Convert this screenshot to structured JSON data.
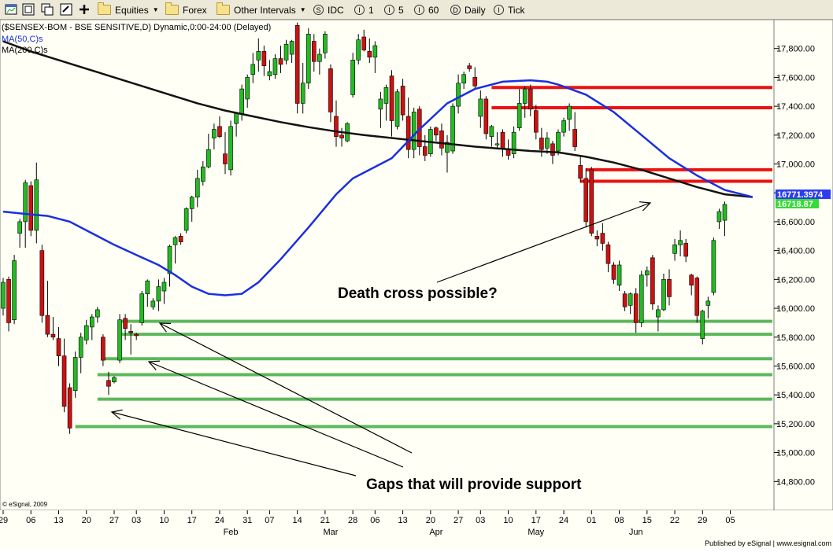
{
  "toolbar": {
    "equities": "Equities",
    "forex": "Forex",
    "other_intervals": "Other Intervals",
    "idc": "IDC",
    "i1": "1",
    "i5": "5",
    "i60": "60",
    "daily": "Daily",
    "tick": "Tick",
    "circle_glyph_idc": "S",
    "circle_glyph_i": "I",
    "circle_glyph_d": "D",
    "circle_glyph_t": "I"
  },
  "chart_data": {
    "type": "candlestick",
    "header": "($SENSEX-BOM - BSE SENSITIVE,D) Dynamic,0:00-24:00 (Delayed)",
    "ma50_label": "MA(50,C)s",
    "ma200_label": "MA(200,C)s",
    "copyright": "© eSignal, 2009",
    "published": "Published by eSignal | www.esignal.com",
    "ylim": [
      14600,
      18000
    ],
    "y_ticks": [
      14800,
      15000,
      15200,
      15400,
      15600,
      15800,
      16000,
      16200,
      16400,
      16600,
      16800,
      17000,
      17200,
      17400,
      17600,
      17800
    ],
    "x_ticks": [
      "29",
      "06",
      "13",
      "20",
      "27",
      "03",
      "10",
      "17",
      "24",
      "31",
      "07",
      "14",
      "21",
      "28",
      "06",
      "13",
      "20",
      "27",
      "03",
      "10",
      "17",
      "24",
      "01",
      "08",
      "15",
      "22",
      "29",
      "05"
    ],
    "months": [
      "Feb",
      "Mar",
      "Apr",
      "May",
      "Jun"
    ],
    "price_labels": {
      "ma50": "16771.3974",
      "close": "16718.87"
    },
    "colors": {
      "up": "#22bb22",
      "down": "#cc1111",
      "ma50": "#1a2fe0",
      "ma200": "#111111",
      "support": "#5cb85c",
      "resistance": "#ee1111",
      "ma50_box": "#2c3cf0",
      "close_box": "#33dd33"
    },
    "candles": [
      {
        "o": 16000,
        "h": 16210,
        "l": 15950,
        "c": 16180
      },
      {
        "o": 16200,
        "h": 16220,
        "l": 15840,
        "c": 15900
      },
      {
        "o": 15920,
        "h": 16370,
        "l": 15890,
        "c": 16330
      },
      {
        "o": 16520,
        "h": 16620,
        "l": 16420,
        "c": 16600
      },
      {
        "o": 16600,
        "h": 16890,
        "l": 16420,
        "c": 16870
      },
      {
        "o": 16850,
        "h": 16880,
        "l": 16500,
        "c": 16540
      },
      {
        "o": 16540,
        "h": 17010,
        "l": 16450,
        "c": 16890
      },
      {
        "o": 16400,
        "h": 16440,
        "l": 15900,
        "c": 15950
      },
      {
        "o": 15950,
        "h": 16190,
        "l": 15800,
        "c": 15820
      },
      {
        "o": 15820,
        "h": 15940,
        "l": 15780,
        "c": 15800
      },
      {
        "o": 15790,
        "h": 15870,
        "l": 15600,
        "c": 15670
      },
      {
        "o": 15670,
        "h": 15790,
        "l": 15280,
        "c": 15320
      },
      {
        "o": 15450,
        "h": 15480,
        "l": 15130,
        "c": 15170
      },
      {
        "o": 15430,
        "h": 15700,
        "l": 15380,
        "c": 15660
      },
      {
        "o": 15660,
        "h": 15830,
        "l": 15550,
        "c": 15800
      },
      {
        "o": 15780,
        "h": 15920,
        "l": 15750,
        "c": 15880
      },
      {
        "o": 15870,
        "h": 15960,
        "l": 15780,
        "c": 15940
      },
      {
        "o": 15940,
        "h": 16010,
        "l": 15900,
        "c": 15990
      },
      {
        "o": 15800,
        "h": 15820,
        "l": 15600,
        "c": 15640
      },
      {
        "o": 15500,
        "h": 15560,
        "l": 15400,
        "c": 15460
      },
      {
        "o": 15490,
        "h": 15530,
        "l": 15480,
        "c": 15520
      },
      {
        "o": 15640,
        "h": 15960,
        "l": 15620,
        "c": 15920
      },
      {
        "o": 15930,
        "h": 15960,
        "l": 15780,
        "c": 15860
      },
      {
        "o": 15840,
        "h": 15890,
        "l": 15680,
        "c": 15830
      },
      {
        "o": 15820,
        "h": 15830,
        "l": 15780,
        "c": 15810
      },
      {
        "o": 15900,
        "h": 16120,
        "l": 15880,
        "c": 16100
      },
      {
        "o": 16100,
        "h": 16200,
        "l": 16010,
        "c": 16190
      },
      {
        "o": 16010,
        "h": 16070,
        "l": 15990,
        "c": 16050
      },
      {
        "o": 16050,
        "h": 16200,
        "l": 15980,
        "c": 16150
      },
      {
        "o": 16120,
        "h": 16210,
        "l": 16030,
        "c": 16180
      },
      {
        "o": 16240,
        "h": 16440,
        "l": 16150,
        "c": 16430
      },
      {
        "o": 16440,
        "h": 16500,
        "l": 16310,
        "c": 16490
      },
      {
        "o": 16500,
        "h": 16520,
        "l": 16440,
        "c": 16460
      },
      {
        "o": 16540,
        "h": 16700,
        "l": 16520,
        "c": 16690
      },
      {
        "o": 16690,
        "h": 16780,
        "l": 16600,
        "c": 16770
      },
      {
        "o": 16770,
        "h": 16960,
        "l": 16700,
        "c": 16900
      },
      {
        "o": 16880,
        "h": 17020,
        "l": 16850,
        "c": 16980
      },
      {
        "o": 16980,
        "h": 17210,
        "l": 16970,
        "c": 17100
      },
      {
        "o": 17180,
        "h": 17280,
        "l": 17100,
        "c": 17240
      },
      {
        "o": 17260,
        "h": 17330,
        "l": 17180,
        "c": 17190
      },
      {
        "o": 17070,
        "h": 17220,
        "l": 16930,
        "c": 17000
      },
      {
        "o": 16960,
        "h": 17300,
        "l": 16920,
        "c": 17260
      },
      {
        "o": 17280,
        "h": 17360,
        "l": 17190,
        "c": 17350
      },
      {
        "o": 17350,
        "h": 17550,
        "l": 17300,
        "c": 17520
      },
      {
        "o": 17450,
        "h": 17620,
        "l": 17390,
        "c": 17600
      },
      {
        "o": 17620,
        "h": 17770,
        "l": 17560,
        "c": 17690
      },
      {
        "o": 17720,
        "h": 17870,
        "l": 17640,
        "c": 17780
      },
      {
        "o": 17780,
        "h": 17820,
        "l": 17610,
        "c": 17680
      },
      {
        "o": 17610,
        "h": 17720,
        "l": 17580,
        "c": 17640
      },
      {
        "o": 17620,
        "h": 17760,
        "l": 17590,
        "c": 17730
      },
      {
        "o": 17730,
        "h": 17820,
        "l": 17630,
        "c": 17690
      },
      {
        "o": 17720,
        "h": 17860,
        "l": 17690,
        "c": 17830
      },
      {
        "o": 17760,
        "h": 17860,
        "l": 17700,
        "c": 17850
      },
      {
        "o": 17960,
        "h": 17980,
        "l": 17350,
        "c": 17420
      },
      {
        "o": 17420,
        "h": 17700,
        "l": 17350,
        "c": 17560
      },
      {
        "o": 17560,
        "h": 17940,
        "l": 17520,
        "c": 17900
      },
      {
        "o": 17850,
        "h": 17900,
        "l": 17640,
        "c": 17710
      },
      {
        "o": 17710,
        "h": 17800,
        "l": 17620,
        "c": 17760
      },
      {
        "o": 17770,
        "h": 17920,
        "l": 17730,
        "c": 17900
      },
      {
        "o": 17660,
        "h": 17690,
        "l": 17290,
        "c": 17360
      },
      {
        "o": 17330,
        "h": 17440,
        "l": 17120,
        "c": 17190
      },
      {
        "o": 17200,
        "h": 17250,
        "l": 17120,
        "c": 17180
      },
      {
        "o": 17160,
        "h": 17290,
        "l": 17150,
        "c": 17280
      },
      {
        "o": 17480,
        "h": 17770,
        "l": 17460,
        "c": 17720
      },
      {
        "o": 17720,
        "h": 17900,
        "l": 17690,
        "c": 17860
      },
      {
        "o": 17880,
        "h": 17930,
        "l": 17780,
        "c": 17790
      },
      {
        "o": 17780,
        "h": 17870,
        "l": 17700,
        "c": 17740
      },
      {
        "o": 17740,
        "h": 17850,
        "l": 17630,
        "c": 17820
      },
      {
        "o": 17380,
        "h": 17500,
        "l": 17250,
        "c": 17450
      },
      {
        "o": 17420,
        "h": 17550,
        "l": 17300,
        "c": 17530
      },
      {
        "o": 17610,
        "h": 17650,
        "l": 17190,
        "c": 17300
      },
      {
        "o": 17260,
        "h": 17520,
        "l": 17240,
        "c": 17500
      },
      {
        "o": 17540,
        "h": 17590,
        "l": 17300,
        "c": 17340
      },
      {
        "o": 17330,
        "h": 17460,
        "l": 17040,
        "c": 17100
      },
      {
        "o": 17100,
        "h": 17390,
        "l": 17040,
        "c": 17360
      },
      {
        "o": 17380,
        "h": 17400,
        "l": 17060,
        "c": 17120
      },
      {
        "o": 17120,
        "h": 17200,
        "l": 17020,
        "c": 17060
      },
      {
        "o": 17070,
        "h": 17260,
        "l": 17050,
        "c": 17240
      },
      {
        "o": 17250,
        "h": 17260,
        "l": 17160,
        "c": 17200
      },
      {
        "o": 17230,
        "h": 17280,
        "l": 17060,
        "c": 17110
      },
      {
        "o": 17080,
        "h": 17200,
        "l": 16940,
        "c": 17150
      },
      {
        "o": 17090,
        "h": 17420,
        "l": 17070,
        "c": 17400
      },
      {
        "o": 17400,
        "h": 17620,
        "l": 17350,
        "c": 17560
      },
      {
        "o": 17560,
        "h": 17640,
        "l": 17520,
        "c": 17620
      },
      {
        "o": 17680,
        "h": 17700,
        "l": 17640,
        "c": 17660
      },
      {
        "o": 17600,
        "h": 17670,
        "l": 17520,
        "c": 17540
      },
      {
        "o": 17330,
        "h": 17510,
        "l": 17250,
        "c": 17450
      },
      {
        "o": 17450,
        "h": 17470,
        "l": 17170,
        "c": 17210
      },
      {
        "o": 17190,
        "h": 17270,
        "l": 17120,
        "c": 17260
      },
      {
        "o": 17140,
        "h": 17220,
        "l": 17100,
        "c": 17140
      },
      {
        "o": 17220,
        "h": 17240,
        "l": 17050,
        "c": 17110
      },
      {
        "o": 17100,
        "h": 17170,
        "l": 17030,
        "c": 17060
      },
      {
        "o": 17070,
        "h": 17260,
        "l": 17040,
        "c": 17220
      },
      {
        "o": 17250,
        "h": 17520,
        "l": 17230,
        "c": 17420
      },
      {
        "o": 17420,
        "h": 17540,
        "l": 17320,
        "c": 17520
      },
      {
        "o": 17520,
        "h": 17550,
        "l": 17330,
        "c": 17380
      },
      {
        "o": 17370,
        "h": 17410,
        "l": 17170,
        "c": 17220
      },
      {
        "o": 17180,
        "h": 17250,
        "l": 17050,
        "c": 17100
      },
      {
        "o": 17110,
        "h": 17220,
        "l": 17070,
        "c": 17180
      },
      {
        "o": 17140,
        "h": 17160,
        "l": 17000,
        "c": 17060
      },
      {
        "o": 17090,
        "h": 17240,
        "l": 17060,
        "c": 17220
      },
      {
        "o": 17220,
        "h": 17320,
        "l": 17190,
        "c": 17300
      },
      {
        "o": 17310,
        "h": 17420,
        "l": 17230,
        "c": 17400
      },
      {
        "o": 17240,
        "h": 17360,
        "l": 17090,
        "c": 17120
      },
      {
        "o": 16990,
        "h": 17050,
        "l": 16870,
        "c": 16900
      },
      {
        "o": 16900,
        "h": 16970,
        "l": 16560,
        "c": 16600
      },
      {
        "o": 16960,
        "h": 16980,
        "l": 16500,
        "c": 16520
      },
      {
        "o": 16500,
        "h": 16540,
        "l": 16430,
        "c": 16480
      },
      {
        "o": 16520,
        "h": 16590,
        "l": 16400,
        "c": 16450
      },
      {
        "o": 16440,
        "h": 16460,
        "l": 16250,
        "c": 16310
      },
      {
        "o": 16300,
        "h": 16320,
        "l": 16170,
        "c": 16200
      },
      {
        "o": 16160,
        "h": 16330,
        "l": 16120,
        "c": 16300
      },
      {
        "o": 16100,
        "h": 16120,
        "l": 15980,
        "c": 16010
      },
      {
        "o": 16020,
        "h": 16110,
        "l": 15960,
        "c": 16100
      },
      {
        "o": 16100,
        "h": 16140,
        "l": 15830,
        "c": 15900
      },
      {
        "o": 15900,
        "h": 16260,
        "l": 15870,
        "c": 16230
      },
      {
        "o": 16230,
        "h": 16290,
        "l": 16150,
        "c": 16260
      },
      {
        "o": 16350,
        "h": 16370,
        "l": 15990,
        "c": 16030
      },
      {
        "o": 15940,
        "h": 16020,
        "l": 15840,
        "c": 15990
      },
      {
        "o": 15990,
        "h": 16240,
        "l": 15980,
        "c": 16200
      },
      {
        "o": 16200,
        "h": 16270,
        "l": 16020,
        "c": 16080
      },
      {
        "o": 16380,
        "h": 16480,
        "l": 16330,
        "c": 16440
      },
      {
        "o": 16440,
        "h": 16540,
        "l": 16360,
        "c": 16470
      },
      {
        "o": 16450,
        "h": 16480,
        "l": 16320,
        "c": 16360
      },
      {
        "o": 16230,
        "h": 16240,
        "l": 16090,
        "c": 16160
      },
      {
        "o": 16210,
        "h": 16220,
        "l": 15900,
        "c": 15950
      },
      {
        "o": 15790,
        "h": 15990,
        "l": 15750,
        "c": 15980
      },
      {
        "o": 16020,
        "h": 16080,
        "l": 15930,
        "c": 16050
      },
      {
        "o": 16110,
        "h": 16490,
        "l": 16090,
        "c": 16470
      },
      {
        "o": 16600,
        "h": 16690,
        "l": 16550,
        "c": 16670
      },
      {
        "o": 16610,
        "h": 16740,
        "l": 16500,
        "c": 16720
      }
    ],
    "ma200": [
      {
        "x": 0,
        "y": 17850
      },
      {
        "x": 5,
        "y": 17780
      },
      {
        "x": 10,
        "y": 17720
      },
      {
        "x": 15,
        "y": 17660
      },
      {
        "x": 20,
        "y": 17600
      },
      {
        "x": 25,
        "y": 17540
      },
      {
        "x": 30,
        "y": 17480
      },
      {
        "x": 35,
        "y": 17420
      },
      {
        "x": 40,
        "y": 17370
      },
      {
        "x": 45,
        "y": 17330
      },
      {
        "x": 50,
        "y": 17290
      },
      {
        "x": 55,
        "y": 17255
      },
      {
        "x": 60,
        "y": 17225
      },
      {
        "x": 65,
        "y": 17200
      },
      {
        "x": 70,
        "y": 17180
      },
      {
        "x": 75,
        "y": 17160
      },
      {
        "x": 80,
        "y": 17140
      },
      {
        "x": 85,
        "y": 17120
      },
      {
        "x": 90,
        "y": 17105
      },
      {
        "x": 95,
        "y": 17090
      },
      {
        "x": 100,
        "y": 17080
      },
      {
        "x": 105,
        "y": 17050
      },
      {
        "x": 110,
        "y": 17010
      },
      {
        "x": 115,
        "y": 16960
      },
      {
        "x": 120,
        "y": 16900
      },
      {
        "x": 125,
        "y": 16840
      },
      {
        "x": 130,
        "y": 16790
      },
      {
        "x": 135,
        "y": 16771
      }
    ],
    "ma50": [
      {
        "x": 0,
        "y": 16670
      },
      {
        "x": 5,
        "y": 16650
      },
      {
        "x": 8,
        "y": 16640
      },
      {
        "x": 12,
        "y": 16600
      },
      {
        "x": 16,
        "y": 16520
      },
      {
        "x": 20,
        "y": 16440
      },
      {
        "x": 24,
        "y": 16370
      },
      {
        "x": 28,
        "y": 16300
      },
      {
        "x": 31,
        "y": 16230
      },
      {
        "x": 34,
        "y": 16150
      },
      {
        "x": 37,
        "y": 16100
      },
      {
        "x": 40,
        "y": 16090
      },
      {
        "x": 43,
        "y": 16100
      },
      {
        "x": 46,
        "y": 16180
      },
      {
        "x": 50,
        "y": 16340
      },
      {
        "x": 55,
        "y": 16560
      },
      {
        "x": 60,
        "y": 16790
      },
      {
        "x": 63,
        "y": 16900
      },
      {
        "x": 66,
        "y": 16960
      },
      {
        "x": 70,
        "y": 17040
      },
      {
        "x": 75,
        "y": 17240
      },
      {
        "x": 80,
        "y": 17420
      },
      {
        "x": 85,
        "y": 17520
      },
      {
        "x": 90,
        "y": 17570
      },
      {
        "x": 95,
        "y": 17580
      },
      {
        "x": 98,
        "y": 17570
      },
      {
        "x": 100,
        "y": 17550
      },
      {
        "x": 105,
        "y": 17480
      },
      {
        "x": 110,
        "y": 17360
      },
      {
        "x": 115,
        "y": 17200
      },
      {
        "x": 120,
        "y": 17040
      },
      {
        "x": 125,
        "y": 16920
      },
      {
        "x": 130,
        "y": 16820
      },
      {
        "x": 135,
        "y": 16771
      }
    ],
    "support_levels": [
      {
        "y": 15910,
        "x0": 21
      },
      {
        "y": 15820,
        "x0": 21
      },
      {
        "y": 15650,
        "x0": 18
      },
      {
        "y": 15540,
        "x0": 17
      },
      {
        "y": 15370,
        "x0": 17
      },
      {
        "y": 15180,
        "x0": 13
      }
    ],
    "resistance_levels": [
      {
        "y": 17530,
        "x0": 88
      },
      {
        "y": 17390,
        "x0": 88
      },
      {
        "y": 16960,
        "x0": 105
      },
      {
        "y": 16880,
        "x0": 104
      }
    ],
    "annotations": [
      {
        "text": "Death cross possible?"
      },
      {
        "text": "Gaps that will provide support"
      }
    ],
    "grid": false
  }
}
